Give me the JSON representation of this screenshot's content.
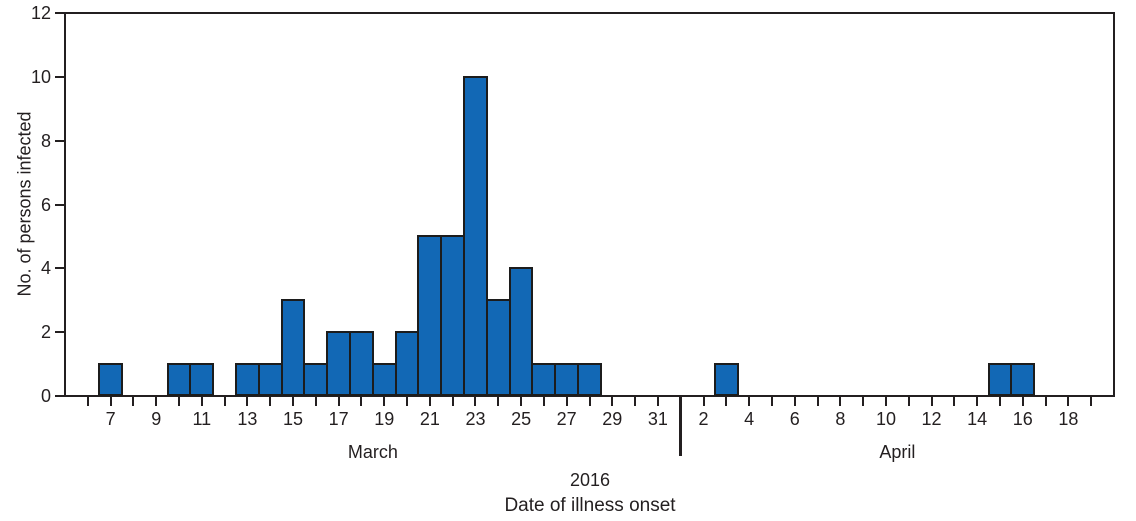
{
  "figure": {
    "background": "#ffffff"
  },
  "chart_data": {
    "type": "bar",
    "title": "",
    "xlabel": "Date of illness onset",
    "ylabel": "No. of persons infected",
    "year_label": "2016",
    "ylim": [
      0,
      12
    ],
    "y_ticks": [
      0,
      2,
      4,
      6,
      8,
      10,
      12
    ],
    "grid": false,
    "legend": "none",
    "bar_fill": "#1268b5",
    "bar_stroke": "#1c1c1c",
    "axis_color": "#231f20",
    "bin_width_days": 1,
    "months": [
      {
        "name": "March",
        "days": [
          6,
          7,
          8,
          9,
          10,
          11,
          12,
          13,
          14,
          15,
          16,
          17,
          18,
          19,
          20,
          21,
          22,
          23,
          24,
          25,
          26,
          27,
          28,
          29,
          30,
          31
        ],
        "values": [
          0,
          1,
          0,
          0,
          1,
          1,
          0,
          1,
          1,
          3,
          1,
          2,
          2,
          1,
          2,
          5,
          5,
          10,
          3,
          4,
          1,
          1,
          1,
          0,
          0,
          0
        ],
        "labeled_days": [
          7,
          9,
          11,
          13,
          15,
          17,
          19,
          21,
          23,
          25,
          27,
          29,
          31
        ]
      },
      {
        "name": "April",
        "days": [
          1,
          2,
          3,
          4,
          5,
          6,
          7,
          8,
          9,
          10,
          11,
          12,
          13,
          14,
          15,
          16,
          17,
          18,
          19
        ],
        "values": [
          0,
          0,
          1,
          0,
          0,
          0,
          0,
          0,
          0,
          0,
          0,
          0,
          0,
          0,
          1,
          1,
          0,
          0,
          0
        ],
        "labeled_days": [
          2,
          4,
          6,
          8,
          10,
          12,
          14,
          16,
          18
        ]
      }
    ]
  }
}
